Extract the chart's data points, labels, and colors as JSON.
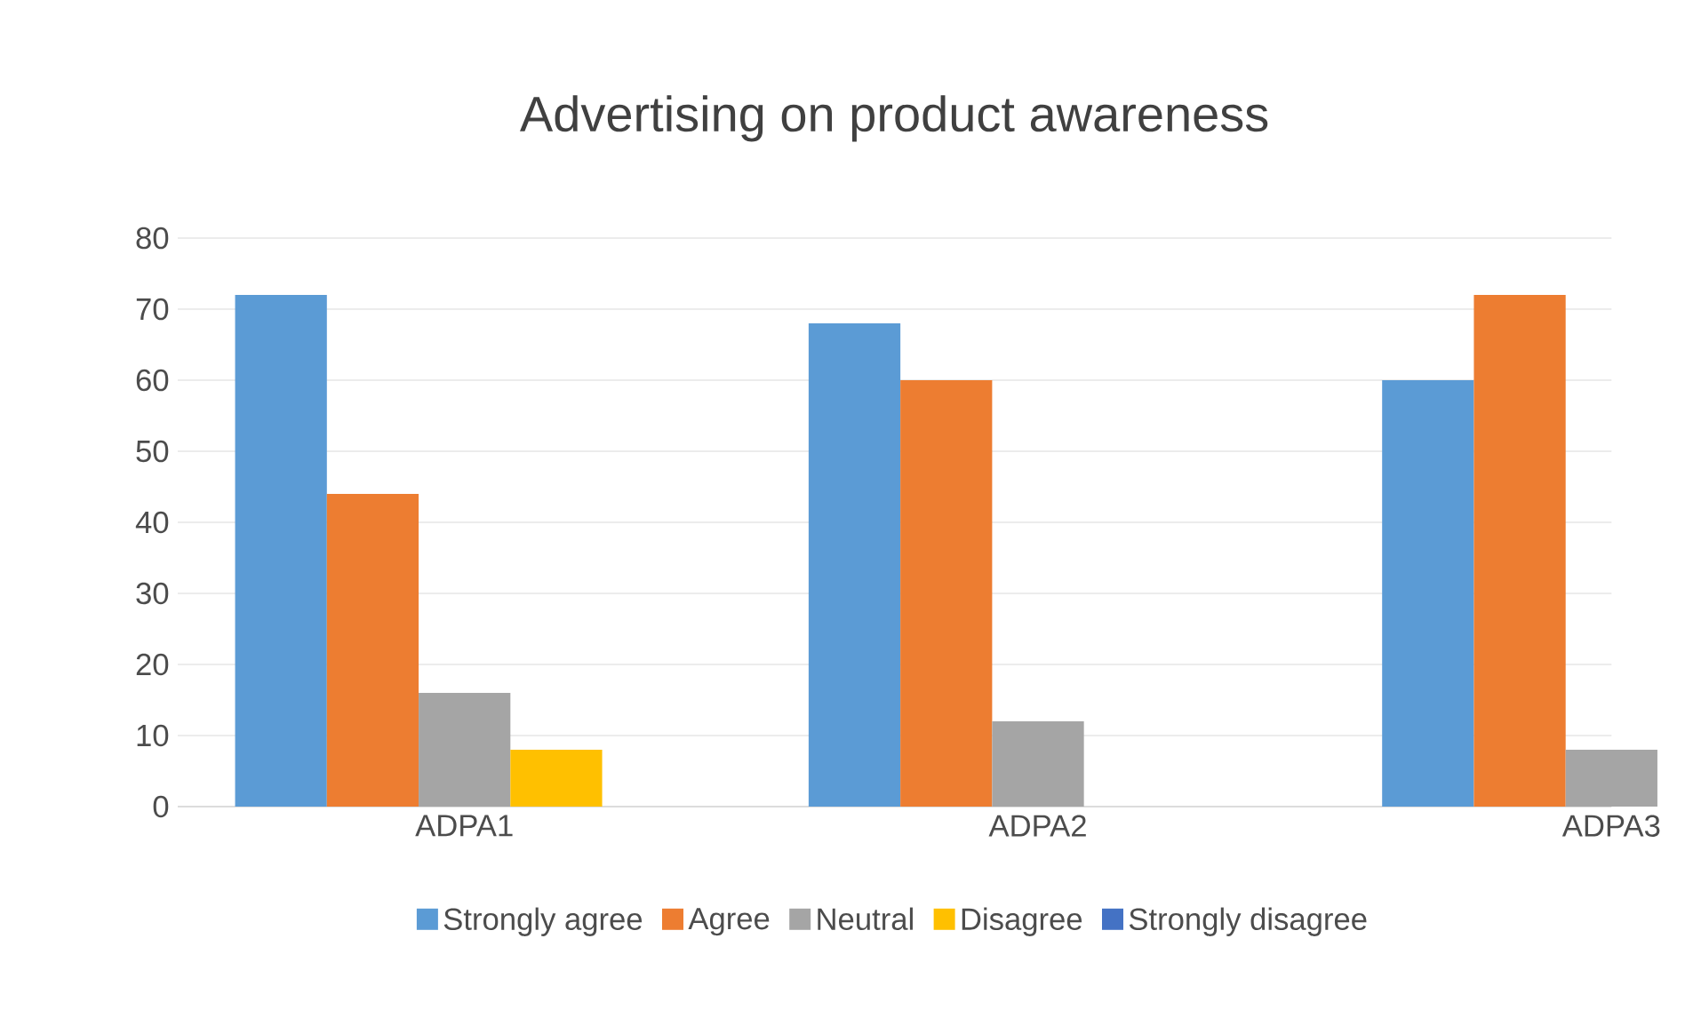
{
  "chart_data": {
    "type": "bar",
    "title": "Advertising on product awareness",
    "categories": [
      "ADPA1",
      "ADPA2",
      "ADPA3"
    ],
    "series": [
      {
        "name": "Strongly agree",
        "color": "#5b9bd5",
        "values": [
          72,
          68,
          60
        ]
      },
      {
        "name": "Agree",
        "color": "#ed7d31",
        "values": [
          44,
          60,
          72
        ]
      },
      {
        "name": "Neutral",
        "color": "#a5a5a5",
        "values": [
          16,
          12,
          8
        ]
      },
      {
        "name": "Disagree",
        "color": "#ffc000",
        "values": [
          8,
          0,
          0
        ]
      },
      {
        "name": "Strongly disagree",
        "color": "#4472c4",
        "values": [
          0,
          0,
          0
        ]
      }
    ],
    "ylim": [
      0,
      80
    ],
    "yticks": [
      0,
      10,
      20,
      30,
      40,
      50,
      60,
      70,
      80
    ],
    "grid": "y",
    "legend": "bottom"
  }
}
